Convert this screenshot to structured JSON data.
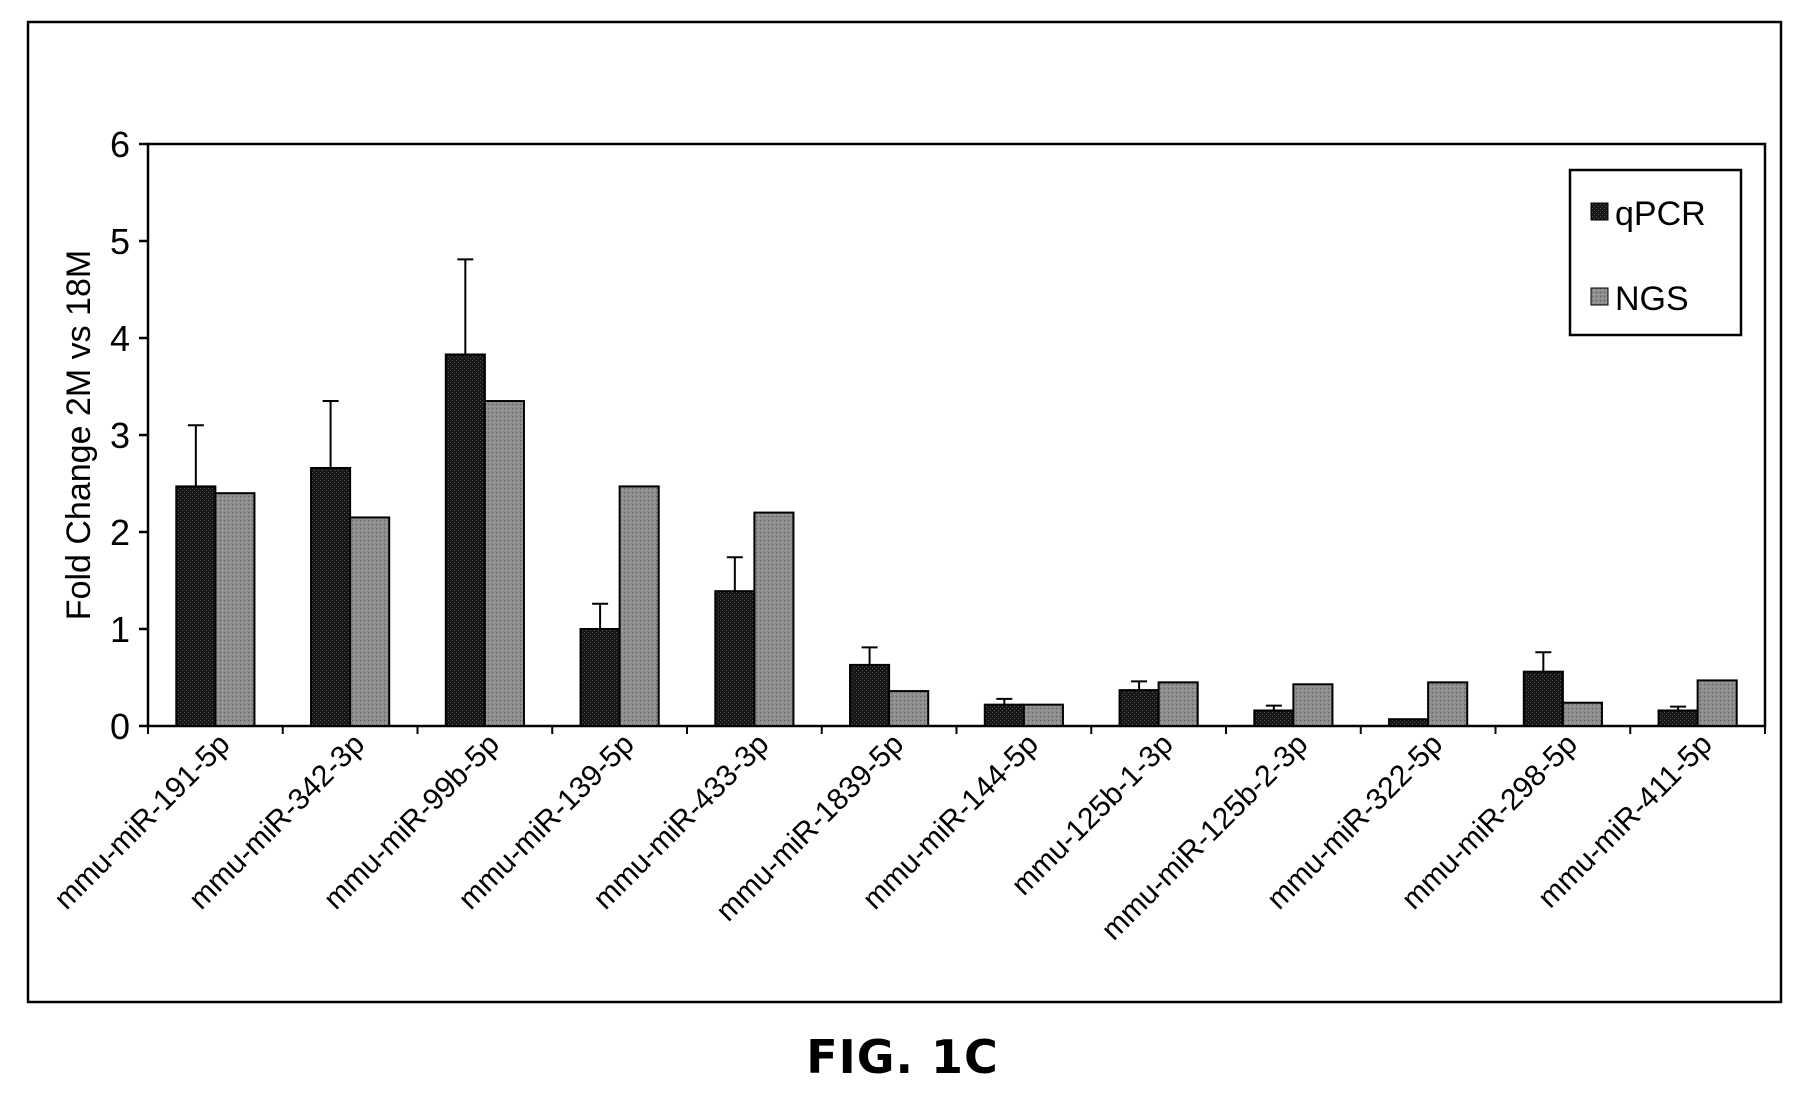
{
  "chart_data": {
    "type": "bar",
    "title": "",
    "xlabel": "",
    "ylabel": "Fold Change 2M vs 18M",
    "ylim": [
      0,
      6
    ],
    "yticks": [
      0,
      1,
      2,
      3,
      4,
      5,
      6
    ],
    "grid": false,
    "legend_position": "top-right",
    "categories": [
      "mmu-miR-191-5p",
      "mmu-miR-342-3p",
      "mmu-miR-99b-5p",
      "mmu-miR-139-5p",
      "mmu-miR-433-3p",
      "mmu-miR-1839-5p",
      "mmu-miR-144-5p",
      "mmu-125b-1-3p",
      "mmu-miR-125b-2-3p",
      "mmu-miR-322-5p",
      "mmu-miR-298-5p",
      "mmu-miR-411-5p"
    ],
    "series": [
      {
        "name": "qPCR",
        "color": "#1e1e1e",
        "values": [
          2.47,
          2.66,
          3.83,
          1.0,
          1.39,
          0.63,
          0.22,
          0.37,
          0.16,
          0.07,
          0.56,
          0.16
        ],
        "error_upper": [
          0.63,
          0.69,
          0.98,
          0.26,
          0.35,
          0.18,
          0.06,
          0.09,
          0.05,
          0.0,
          0.2,
          0.04
        ]
      },
      {
        "name": "NGS",
        "color": "#8c8c8c",
        "values": [
          2.4,
          2.15,
          3.35,
          2.47,
          2.2,
          0.36,
          0.22,
          0.45,
          0.43,
          0.45,
          0.24,
          0.47
        ]
      }
    ]
  },
  "figure_label": "FIG. 1C"
}
